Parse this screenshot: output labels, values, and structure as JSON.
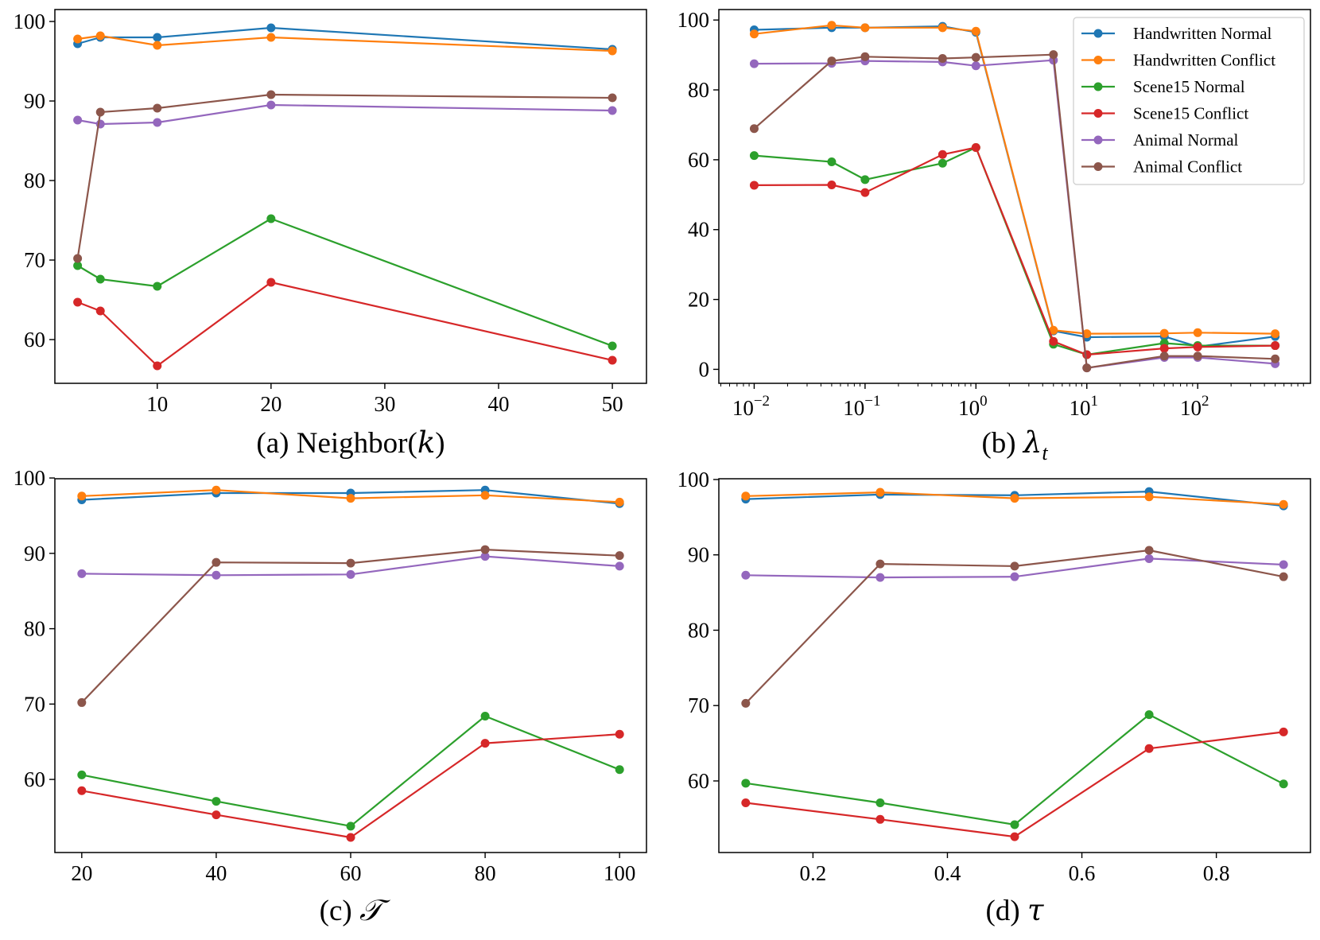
{
  "colors": {
    "Handwritten Normal": "#1f77b4",
    "Handwritten Conflict": "#ff7f0e",
    "Scene15 Normal": "#2ca02c",
    "Scene15 Conflict": "#d62728",
    "Animal Normal": "#9467bd",
    "Animal Conflict": "#8c564b"
  },
  "legend": {
    "entries": [
      "Handwritten Normal",
      "Handwritten Conflict",
      "Scene15 Normal",
      "Scene15 Conflict",
      "Animal Normal",
      "Animal Conflict"
    ],
    "placement": "top-right of panel (b)"
  },
  "chart_data": [
    {
      "id": "a",
      "type": "line",
      "caption": "(a) Neighbor(",
      "caption_var": "k",
      "caption_close": ")",
      "xscale": "linear",
      "xlim": [
        1,
        53
      ],
      "ylim": [
        54.5,
        101.5
      ],
      "xticks": [
        10,
        20,
        30,
        40,
        50
      ],
      "xtick_labels": [
        "10",
        "20",
        "30",
        "40",
        "50"
      ],
      "yticks": [
        60,
        70,
        80,
        90,
        100
      ],
      "ytick_labels": [
        "60",
        "70",
        "80",
        "90",
        "100"
      ],
      "x": [
        3,
        5,
        10,
        20,
        50
      ],
      "series": [
        {
          "name": "Handwritten Normal",
          "values": [
            97.2,
            98.0,
            98.0,
            99.2,
            96.5
          ]
        },
        {
          "name": "Handwritten Conflict",
          "values": [
            97.8,
            98.2,
            97.0,
            98.0,
            96.3
          ]
        },
        {
          "name": "Scene15 Normal",
          "values": [
            69.3,
            67.6,
            66.7,
            75.2,
            59.2
          ]
        },
        {
          "name": "Scene15 Conflict",
          "values": [
            64.7,
            63.6,
            56.7,
            67.2,
            57.4
          ]
        },
        {
          "name": "Animal Normal",
          "values": [
            87.6,
            87.1,
            87.3,
            89.5,
            88.8
          ]
        },
        {
          "name": "Animal Conflict",
          "values": [
            70.2,
            88.6,
            89.1,
            90.8,
            90.4
          ]
        }
      ]
    },
    {
      "id": "b",
      "type": "line",
      "caption": "(b) ",
      "caption_var": "λ",
      "caption_sub": "t",
      "caption_close": "",
      "xscale": "log",
      "xlim": [
        0.0048,
        1040
      ],
      "ylim": [
        -4,
        103
      ],
      "xticks": [
        0.01,
        0.1,
        1,
        10,
        100
      ],
      "xtick_base": [
        "10",
        "10",
        "10",
        "10",
        "10"
      ],
      "xtick_exp": [
        "−2",
        "−1",
        "0",
        "1",
        "2"
      ],
      "yticks": [
        0,
        20,
        40,
        60,
        80,
        100
      ],
      "ytick_labels": [
        "0",
        "20",
        "40",
        "60",
        "80",
        "100"
      ],
      "x": [
        0.01,
        0.05,
        0.1,
        0.5,
        1,
        5,
        10,
        50,
        100,
        500
      ],
      "series": [
        {
          "name": "Handwritten Normal",
          "values": [
            97.2,
            97.8,
            97.8,
            98.2,
            96.5,
            11.0,
            9.2,
            9.4,
            6.5,
            9.4
          ]
        },
        {
          "name": "Handwritten Conflict",
          "values": [
            96.0,
            98.5,
            97.8,
            97.8,
            96.8,
            11.2,
            10.2,
            10.3,
            10.5,
            10.2
          ]
        },
        {
          "name": "Scene15 Normal",
          "values": [
            61.2,
            59.4,
            54.3,
            59.0,
            63.5,
            7.2,
            4.2,
            7.5,
            6.8,
            6.8
          ]
        },
        {
          "name": "Scene15 Conflict",
          "values": [
            52.7,
            52.8,
            50.6,
            61.5,
            63.5,
            8.0,
            4.2,
            6.0,
            6.4,
            6.8
          ]
        },
        {
          "name": "Animal Normal",
          "values": [
            87.5,
            87.6,
            88.3,
            88.0,
            86.9,
            88.5,
            0.4,
            3.4,
            3.4,
            1.6
          ]
        },
        {
          "name": "Animal Conflict",
          "values": [
            68.9,
            88.3,
            89.5,
            89.0,
            89.3,
            90.1,
            0.4,
            3.8,
            3.8,
            3.0
          ]
        }
      ]
    },
    {
      "id": "c",
      "type": "line",
      "caption": "(c) ",
      "caption_var": "𝒯",
      "caption_close": "",
      "xscale": "linear",
      "xlim": [
        16,
        104
      ],
      "ylim": [
        50.3,
        99.9
      ],
      "xticks": [
        20,
        40,
        60,
        80,
        100
      ],
      "xtick_labels": [
        "20",
        "40",
        "60",
        "80",
        "100"
      ],
      "yticks": [
        60,
        70,
        80,
        90,
        100
      ],
      "ytick_labels": [
        "60",
        "70",
        "80",
        "90",
        "100"
      ],
      "x": [
        20,
        40,
        60,
        80,
        100
      ],
      "series": [
        {
          "name": "Handwritten Normal",
          "values": [
            97.1,
            98.0,
            98.0,
            98.4,
            96.6
          ]
        },
        {
          "name": "Handwritten Conflict",
          "values": [
            97.6,
            98.4,
            97.3,
            97.7,
            96.8
          ]
        },
        {
          "name": "Scene15 Normal",
          "values": [
            60.6,
            57.1,
            53.8,
            68.4,
            61.3
          ]
        },
        {
          "name": "Scene15 Conflict",
          "values": [
            58.5,
            55.3,
            52.3,
            64.8,
            66.0
          ]
        },
        {
          "name": "Animal Normal",
          "values": [
            87.3,
            87.1,
            87.2,
            89.6,
            88.3
          ]
        },
        {
          "name": "Animal Conflict",
          "values": [
            70.2,
            88.8,
            88.7,
            90.5,
            89.7
          ]
        }
      ]
    },
    {
      "id": "d",
      "type": "line",
      "caption": "(d) ",
      "caption_var": "τ",
      "caption_close": "",
      "xscale": "linear",
      "xlim": [
        0.06,
        0.94
      ],
      "ylim": [
        50.5,
        100.1
      ],
      "xticks": [
        0.2,
        0.4,
        0.6,
        0.8
      ],
      "xtick_labels": [
        "0.2",
        "0.4",
        "0.6",
        "0.8"
      ],
      "yticks": [
        60,
        70,
        80,
        90,
        100
      ],
      "ytick_labels": [
        "60",
        "70",
        "80",
        "90",
        "100"
      ],
      "x": [
        0.1,
        0.3,
        0.5,
        0.7,
        0.9
      ],
      "series": [
        {
          "name": "Handwritten Normal",
          "values": [
            97.4,
            98.0,
            97.9,
            98.4,
            96.5
          ]
        },
        {
          "name": "Handwritten Conflict",
          "values": [
            97.8,
            98.3,
            97.5,
            97.7,
            96.7
          ]
        },
        {
          "name": "Scene15 Normal",
          "values": [
            59.7,
            57.1,
            54.2,
            68.8,
            59.6
          ]
        },
        {
          "name": "Scene15 Conflict",
          "values": [
            57.1,
            54.9,
            52.6,
            64.3,
            66.5
          ]
        },
        {
          "name": "Animal Normal",
          "values": [
            87.3,
            87.0,
            87.1,
            89.5,
            88.7
          ]
        },
        {
          "name": "Animal Conflict",
          "values": [
            70.3,
            88.8,
            88.5,
            90.6,
            87.1
          ]
        }
      ]
    }
  ]
}
